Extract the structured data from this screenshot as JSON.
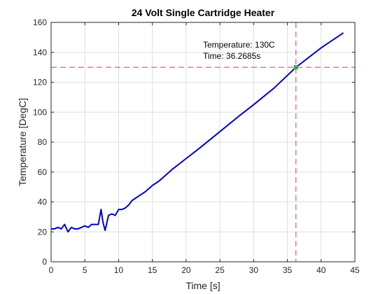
{
  "chart_data": {
    "type": "line",
    "title": "24 Volt Single Cartridge Heater",
    "xlabel": "Time [s]",
    "ylabel": "Temperature [DegC]",
    "xlim": [
      0,
      45
    ],
    "ylim": [
      0,
      160
    ],
    "xticks": [
      0,
      5,
      10,
      15,
      20,
      25,
      30,
      35,
      40,
      45
    ],
    "yticks": [
      0,
      20,
      40,
      60,
      80,
      100,
      120,
      140,
      160
    ],
    "grid": true,
    "series": [
      {
        "color": "#0000c8",
        "x": [
          0,
          0.5,
          1,
          1.5,
          2,
          2.5,
          3,
          3.5,
          4,
          4.5,
          5,
          5.5,
          6,
          6.5,
          7,
          7.4,
          7.7,
          8,
          8.5,
          9,
          9.5,
          10,
          10.5,
          11,
          11.5,
          12,
          13,
          14,
          15,
          16,
          17,
          18,
          20,
          22,
          25,
          28,
          30,
          33,
          36.27,
          40,
          43.3
        ],
        "y": [
          22,
          22,
          23,
          22,
          25,
          20,
          23,
          22,
          22,
          23,
          24,
          23,
          25,
          25,
          25,
          35,
          26,
          21,
          31,
          32,
          31,
          35,
          35,
          36,
          38,
          41,
          44,
          47,
          51,
          54,
          58,
          62,
          69,
          76,
          87,
          98,
          105,
          116,
          130,
          143,
          153
        ]
      }
    ],
    "crosshair": {
      "x": 36.2685,
      "y": 130,
      "line_color": "#d6336c",
      "marker_color": "#22b14c"
    },
    "annotation": {
      "line1": "Temperature: 130C",
      "line2": "Time: 36.2685s"
    }
  }
}
